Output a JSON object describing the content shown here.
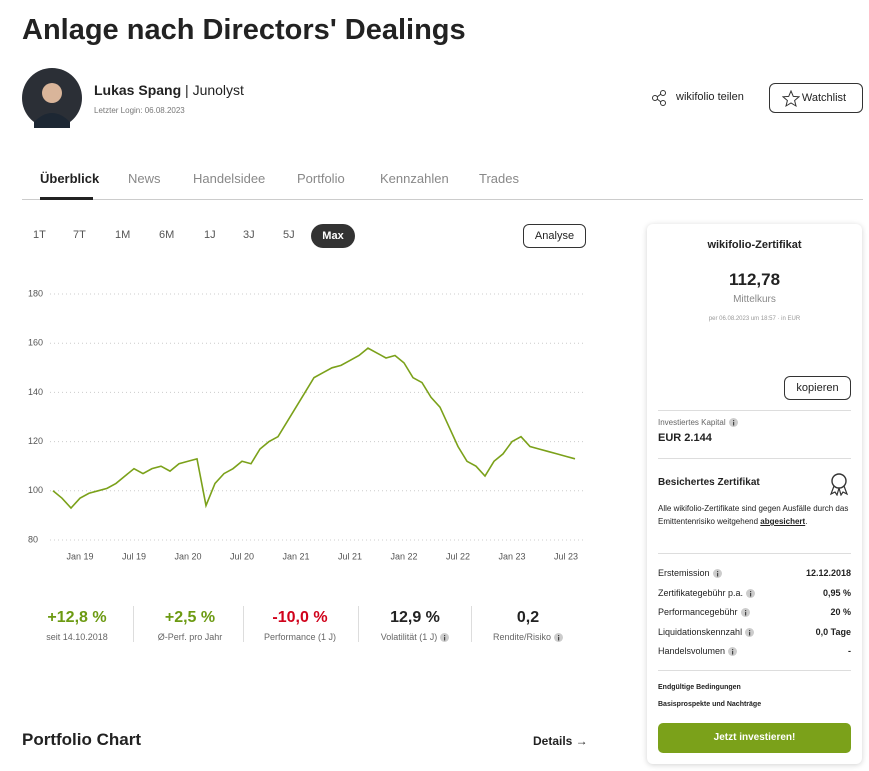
{
  "header": {
    "title": "Anlage nach Directors' Dealings",
    "author": "Lukas Spang",
    "separator": "|",
    "role": "Junolyst",
    "last_login": "Letzter Login: 06.08.2023",
    "share": "wikifolio teilen",
    "watchlist": "Watchlist"
  },
  "tabs": [
    "Überblick",
    "News",
    "Handelsidee",
    "Portfolio",
    "Kennzahlen",
    "Trades"
  ],
  "ranges": [
    "1T",
    "7T",
    "1M",
    "6M",
    "1J",
    "3J",
    "5J",
    "Max"
  ],
  "analyse": "Analyse",
  "chart_data": {
    "type": "line",
    "color": "#7ba11a",
    "grid": true,
    "categories": [
      null,
      null,
      null,
      "Jan 19",
      null,
      null,
      null,
      null,
      null,
      "Jul 19",
      null,
      null,
      null,
      null,
      null,
      "Jan 20",
      null,
      null,
      null,
      null,
      null,
      "Jul 20",
      null,
      null,
      null,
      null,
      null,
      "Jan 21",
      null,
      null,
      null,
      null,
      null,
      "Jul 21",
      null,
      null,
      null,
      null,
      null,
      "Jan 22",
      null,
      null,
      null,
      null,
      null,
      "Jul 22",
      null,
      null,
      null,
      null,
      null,
      "Jan 23",
      null,
      null,
      null,
      null,
      null,
      "Jul 23",
      null
    ],
    "values": [
      100,
      97,
      93,
      97,
      99,
      100,
      101,
      103,
      106,
      109,
      107,
      109,
      110,
      108,
      111,
      112,
      113,
      94,
      103,
      107,
      109,
      112,
      111,
      117,
      120,
      122,
      128,
      134,
      140,
      146,
      148,
      150,
      151,
      153,
      155,
      158,
      156,
      154,
      155,
      152,
      146,
      144,
      138,
      134,
      126,
      118,
      112,
      110,
      106,
      112,
      115,
      120,
      122,
      118,
      117,
      116,
      115,
      114,
      113
    ],
    "ylim": [
      80,
      180
    ],
    "yticks": [
      80,
      100,
      120,
      140,
      160,
      180
    ]
  },
  "stats": [
    {
      "value": "+12,8 %",
      "label": "seit 14.10.2018",
      "color": "#6c9a12"
    },
    {
      "value": "+2,5 %",
      "label": "Ø-Perf. pro Jahr",
      "color": "#6c9a12"
    },
    {
      "value": "-10,0 %",
      "label": "Performance (1 J)",
      "color": "#d0021b"
    },
    {
      "value": "12,9 %",
      "label": "Volatilität (1 J)",
      "color": "#222222"
    },
    {
      "value": "0,2",
      "label": "Rendite/Risiko",
      "color": "#222222"
    }
  ],
  "portfolio_chart": {
    "title": "Portfolio Chart",
    "details": "Details →"
  },
  "certificate": {
    "title": "wikifolio-Zertifikat",
    "price": "112,78",
    "price_label": "Mittelkurs",
    "timestamp": "per 06.08.2023 um 18:57 · in EUR",
    "copy": "kopieren",
    "capital_label": "Investiertes Kapital",
    "capital": "EUR 2.144",
    "secured_title": "Besichertes Zertifikat",
    "secured_text": "Alle wikifolio-Zertifikate sind gegen Ausfälle durch das Emittentenrisiko weitgehend",
    "secured_link": "abgesichert",
    "secured_end": ".",
    "facts": [
      [
        "Erstemission",
        "12.12.2018"
      ],
      [
        "Zertifikategebühr p.a.",
        "0,95 %"
      ],
      [
        "Performancegebühr",
        "20 %"
      ],
      [
        "Liquidationskennzahl",
        "0,0 Tage"
      ],
      [
        "Handelsvolumen",
        "-"
      ]
    ],
    "links": [
      "Endgültige Bedingungen",
      "Basisprospekte und Nachträge"
    ],
    "cta": "Jetzt investieren!"
  }
}
